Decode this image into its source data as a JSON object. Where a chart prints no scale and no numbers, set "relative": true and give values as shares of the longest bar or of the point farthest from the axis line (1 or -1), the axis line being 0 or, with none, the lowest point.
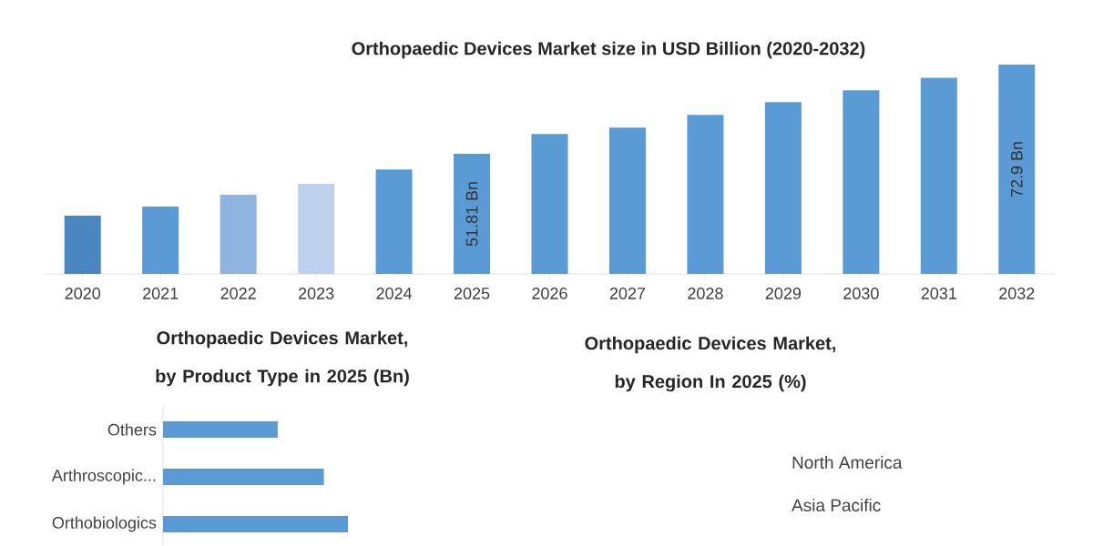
{
  "chart_data": [
    {
      "type": "bar",
      "title": "Orthopaedic Devices Market size in USD Billion (2020-2032)",
      "ylim": [
        23.4,
        72.9
      ],
      "categories": [
        "2020",
        "2021",
        "2022",
        "2023",
        "2024",
        "2025",
        "2026",
        "2027",
        "2028",
        "2029",
        "2030",
        "2031",
        "2032"
      ],
      "values": [
        37.2,
        39.3,
        42.1,
        44.7,
        48.1,
        51.81,
        56.5,
        58.0,
        61.0,
        64.0,
        66.8,
        69.8,
        72.9
      ],
      "colors": [
        "#4a86c0",
        "#5b9bd5",
        "#8fb4e0",
        "#bdd1ec",
        "#5b9bd5",
        "#5b9bd5",
        "#5b9bd5",
        "#5b9bd5",
        "#5b9bd5",
        "#5b9bd5",
        "#5b9bd5",
        "#5b9bd5",
        "#5b9bd5"
      ],
      "value_labels": [
        null,
        null,
        null,
        null,
        null,
        "51.81 Bn",
        null,
        null,
        null,
        null,
        null,
        null,
        "72.9 Bn"
      ]
    },
    {
      "type": "bar",
      "orientation": "horizontal",
      "relative": true,
      "title": "Orthopaedic Devices Market, by Product Type in 2025 (Bn)",
      "categories": [
        "Others",
        "Arthroscopic...",
        "Orthobiologics"
      ],
      "values": [
        0.62,
        0.87,
        1
      ],
      "color": "#5b9bd5"
    },
    {
      "type": "other",
      "title": "Orthopaedic Devices Market, by Region In 2025 (%)",
      "annotations": [
        "North America",
        "Asia Pacific"
      ]
    }
  ]
}
